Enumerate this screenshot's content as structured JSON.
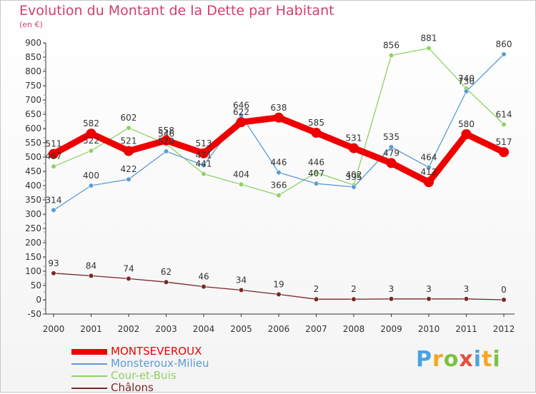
{
  "header": {
    "title": "Evolution du Montant de la Dette par Habitant",
    "subtitle": "(en €)"
  },
  "chart_data": {
    "type": "line",
    "title": "Evolution du Montant de la Dette par Habitant",
    "subtitle": "(en €)",
    "xlabel": "",
    "ylabel": "",
    "x": [
      "2000",
      "2001",
      "2002",
      "2003",
      "2004",
      "2005",
      "2006",
      "2007",
      "2008",
      "2009",
      "2010",
      "2011",
      "2012"
    ],
    "ylim": [
      -50,
      900
    ],
    "yticks": [
      -50,
      0,
      50,
      100,
      150,
      200,
      250,
      300,
      350,
      400,
      450,
      500,
      550,
      600,
      650,
      700,
      750,
      800,
      850,
      900
    ],
    "grid": false,
    "legend_position": "bottom-left",
    "series": [
      {
        "name": "MONTSEVEROUX",
        "color": "#ee0000",
        "values": [
          511,
          582,
          521,
          558,
          513,
          622,
          638,
          585,
          531,
          479,
          412,
          580,
          517
        ]
      },
      {
        "name": "Monsteroux-Milieu",
        "color": "#5b9bd5",
        "values": [
          314,
          400,
          422,
          520,
          471,
          646,
          446,
          407,
          395,
          535,
          464,
          730,
          860
        ]
      },
      {
        "name": "Cour-et-Buis",
        "color": "#8ed262",
        "values": [
          467,
          522,
          602,
          546,
          441,
          404,
          366,
          446,
          402,
          856,
          881,
          740,
          614
        ]
      },
      {
        "name": "Châlons",
        "color": "#7a2525",
        "values": [
          93,
          84,
          74,
          62,
          46,
          34,
          19,
          2,
          2,
          3,
          3,
          3,
          0
        ]
      }
    ]
  },
  "logo": {
    "letters": [
      "P",
      "r",
      "o",
      "x",
      "i",
      "t",
      "i"
    ],
    "colors": [
      "#4aa3df",
      "#f5a623",
      "#7cc242",
      "#e84c3d",
      "#4aa3df",
      "#f5a623",
      "#7cc242"
    ]
  }
}
